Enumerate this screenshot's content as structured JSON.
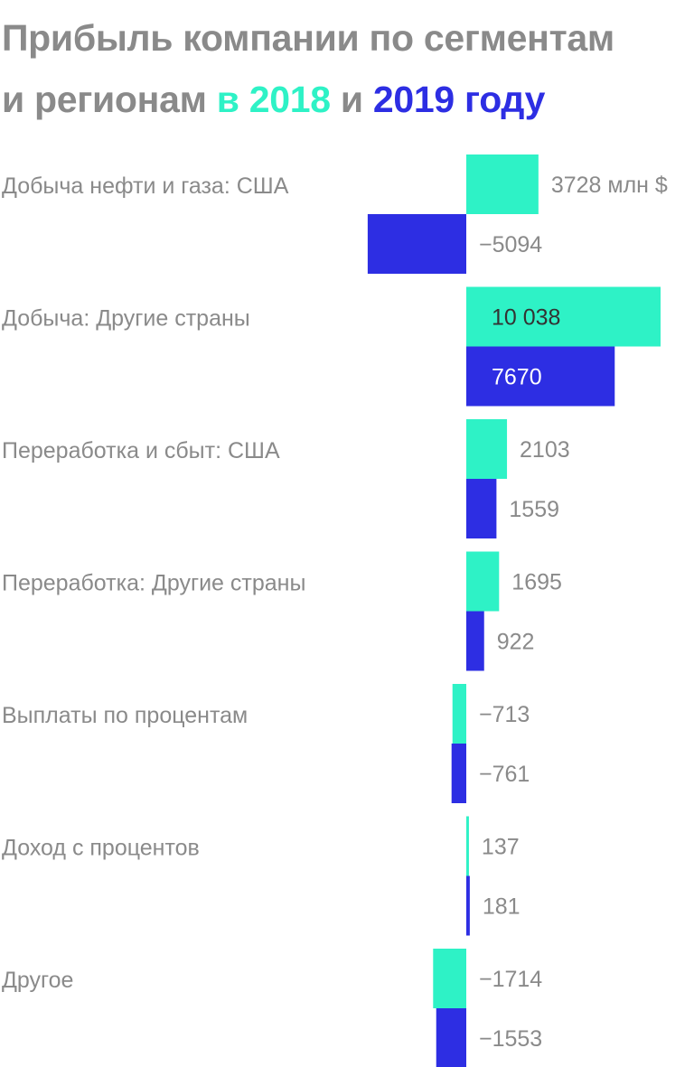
{
  "title": {
    "line1": "Прибыль компании по сегментам",
    "line2_start": "и регионам ",
    "year1": "в 2018",
    "join": " и ",
    "year2": "2019 году"
  },
  "colors": {
    "2018": "#2ef2c6",
    "2019": "#2d2ee3"
  },
  "chart_data": {
    "type": "bar",
    "orientation": "horizontal",
    "unit": "млн $",
    "categories": [
      "Добыча нефти и газа: США",
      "Добыча: Другие страны",
      "Переработка и сбыт: США",
      "Переработка: Другие страны",
      "Выплаты по процентам",
      "Доход с процентов",
      "Другое"
    ],
    "series": [
      {
        "name": "2018",
        "color": "#2ef2c6",
        "values": [
          3728,
          10038,
          2103,
          1695,
          -713,
          137,
          -1714
        ]
      },
      {
        "name": "2019",
        "color": "#2d2ee3",
        "values": [
          -5094,
          7670,
          1559,
          922,
          -761,
          181,
          -1553
        ]
      }
    ],
    "value_labels": [
      [
        "3728 млн $",
        "−5094"
      ],
      [
        "10 038",
        "7670"
      ],
      [
        "2103",
        "1559"
      ],
      [
        "1695",
        "922"
      ],
      [
        "−713",
        "−761"
      ],
      [
        "137",
        "181"
      ],
      [
        "−1714",
        "−1553"
      ]
    ]
  }
}
